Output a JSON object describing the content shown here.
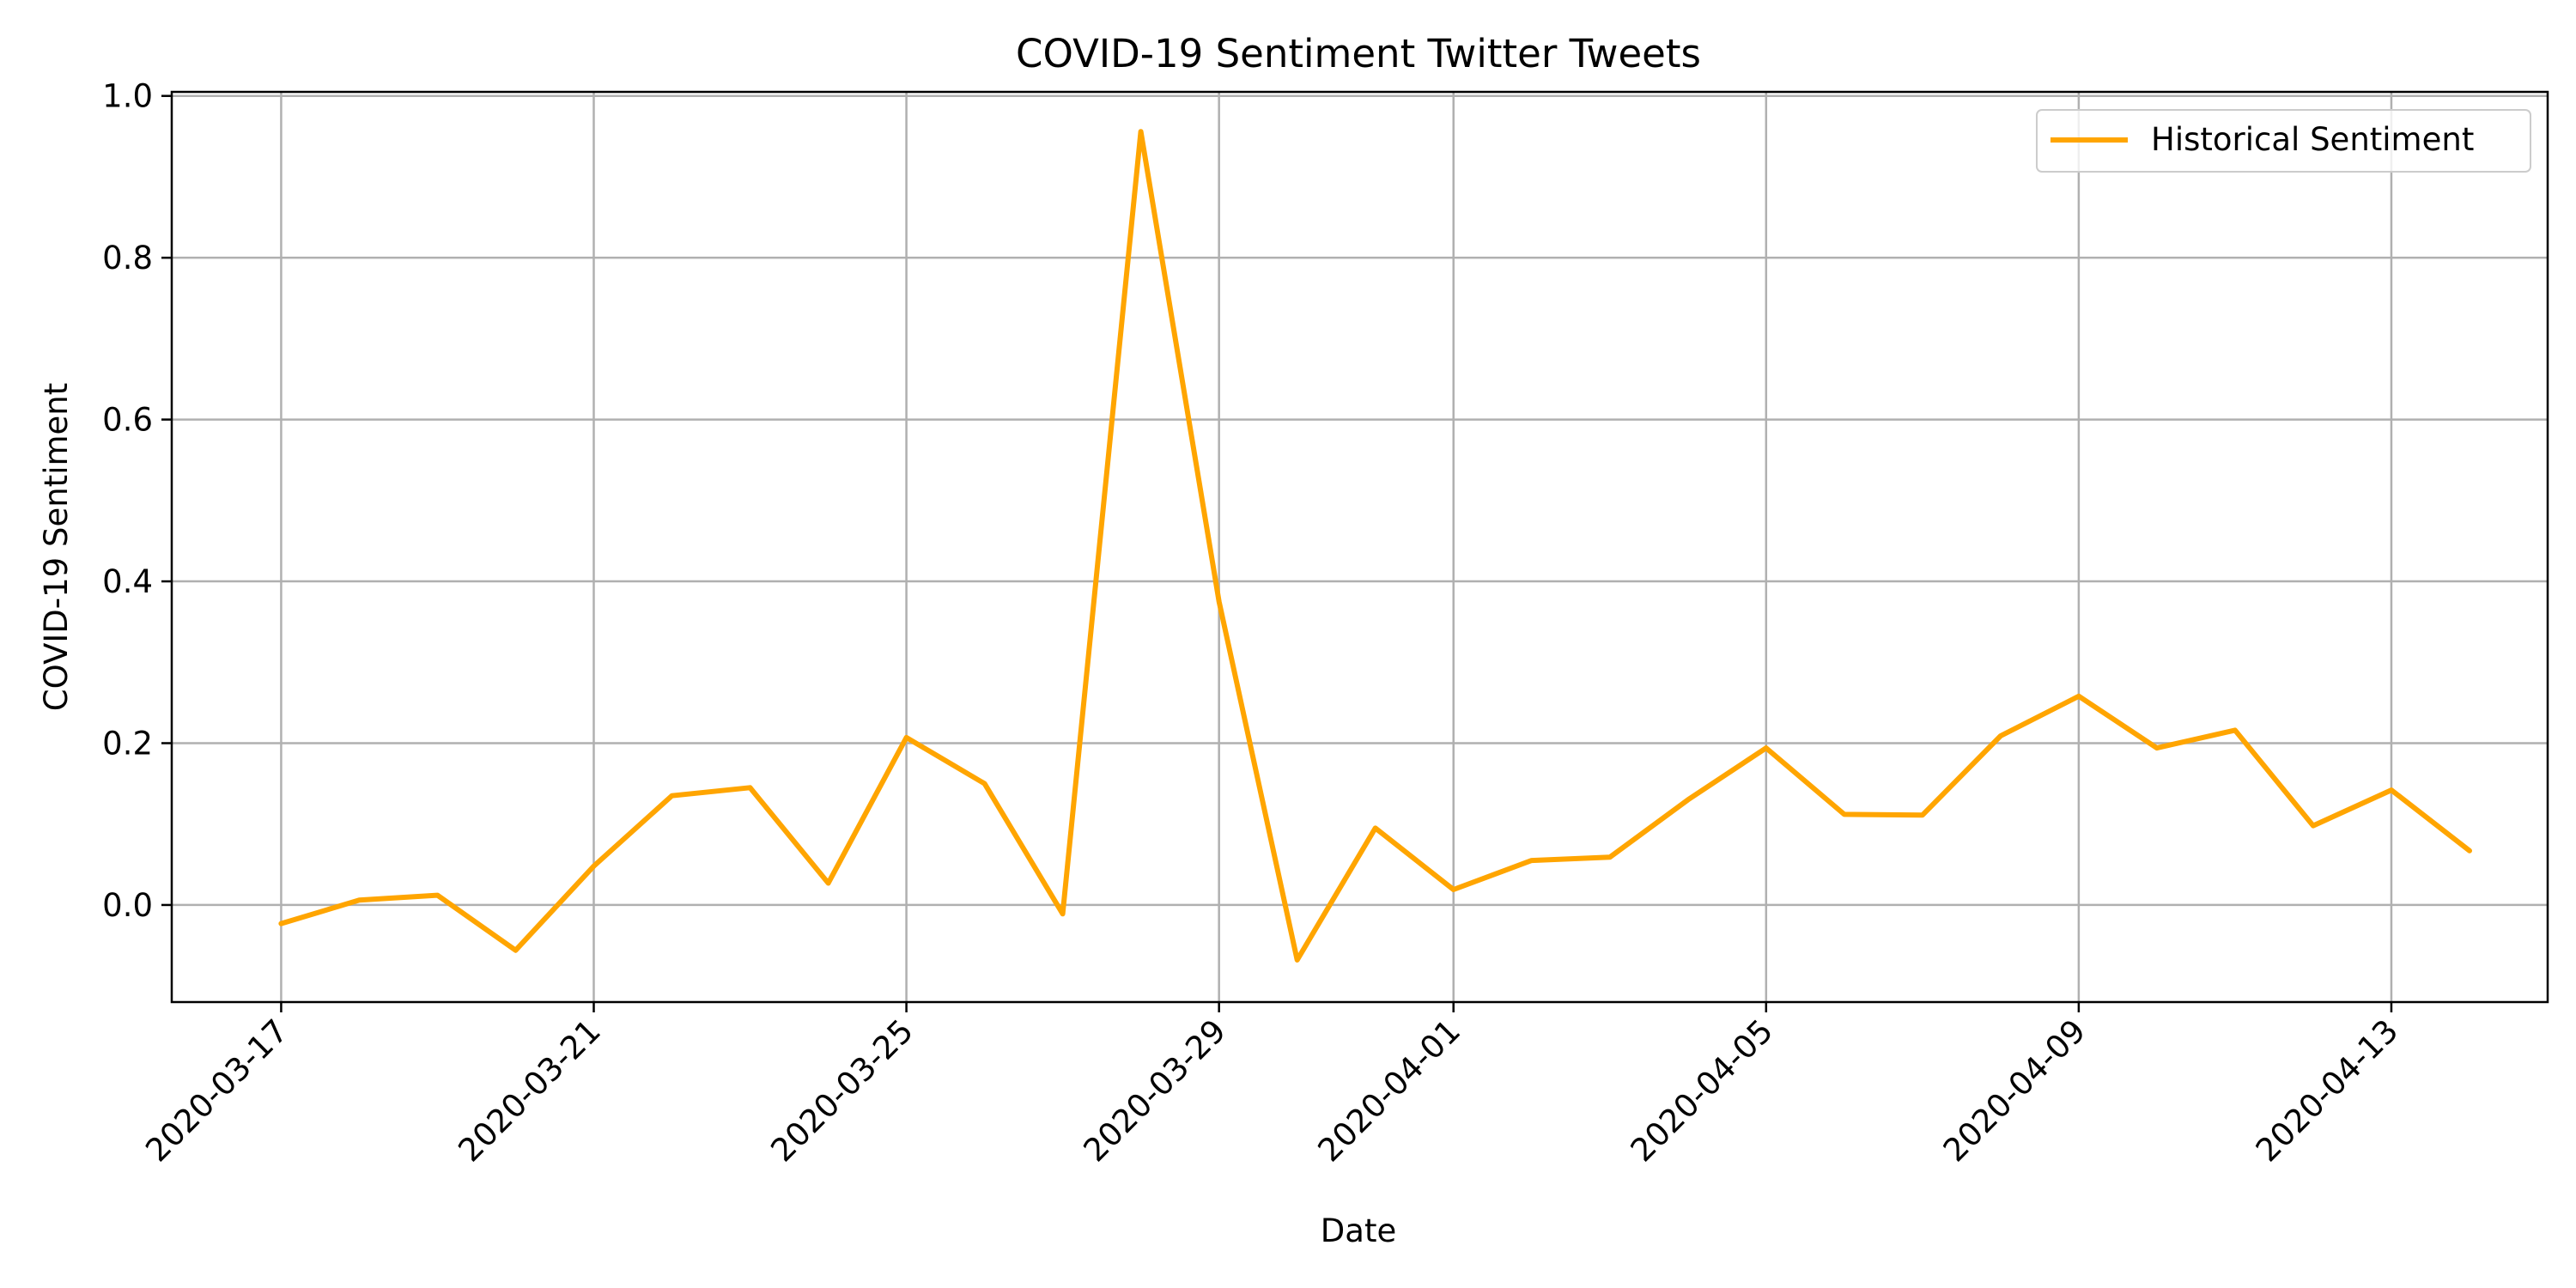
{
  "chart_data": {
    "type": "line",
    "title": "COVID-19 Sentiment Twitter Tweets",
    "xlabel": "Date",
    "ylabel": "COVID-19 Sentiment",
    "ylim": [
      -0.12,
      1.005
    ],
    "xlim": [
      "2020-03-15.6",
      "2020-04-15.0"
    ],
    "grid": true,
    "legend_position": "top-right",
    "x_ticks": [
      "2020-03-17",
      "2020-03-21",
      "2020-03-25",
      "2020-03-29",
      "2020-04-01",
      "2020-04-05",
      "2020-04-09",
      "2020-04-13"
    ],
    "y_ticks": [
      0.0,
      0.2,
      0.4,
      0.6,
      0.8,
      1.0
    ],
    "y_tick_labels": [
      "0.0",
      "0.2",
      "0.4",
      "0.6",
      "0.8",
      "1.0"
    ],
    "series": [
      {
        "name": "Historical Sentiment",
        "color": "#FFA500",
        "x": [
          "2020-03-17",
          "2020-03-18",
          "2020-03-19",
          "2020-03-20",
          "2020-03-21",
          "2020-03-22",
          "2020-03-23",
          "2020-03-24",
          "2020-03-25",
          "2020-03-26",
          "2020-03-27",
          "2020-03-28",
          "2020-03-29",
          "2020-03-30",
          "2020-03-31",
          "2020-04-01",
          "2020-04-02",
          "2020-04-03",
          "2020-04-04",
          "2020-04-05",
          "2020-04-06",
          "2020-04-07",
          "2020-04-08",
          "2020-04-09",
          "2020-04-10",
          "2020-04-11",
          "2020-04-12",
          "2020-04-13",
          "2020-04-14"
        ],
        "values": [
          -0.023,
          0.006,
          0.012,
          -0.056,
          0.048,
          0.135,
          0.145,
          0.027,
          0.207,
          0.15,
          -0.011,
          0.956,
          0.375,
          -0.068,
          0.095,
          0.019,
          0.055,
          0.059,
          0.13,
          0.194,
          0.112,
          0.111,
          0.209,
          0.258,
          0.194,
          0.216,
          0.098,
          0.142,
          0.067
        ]
      }
    ]
  }
}
